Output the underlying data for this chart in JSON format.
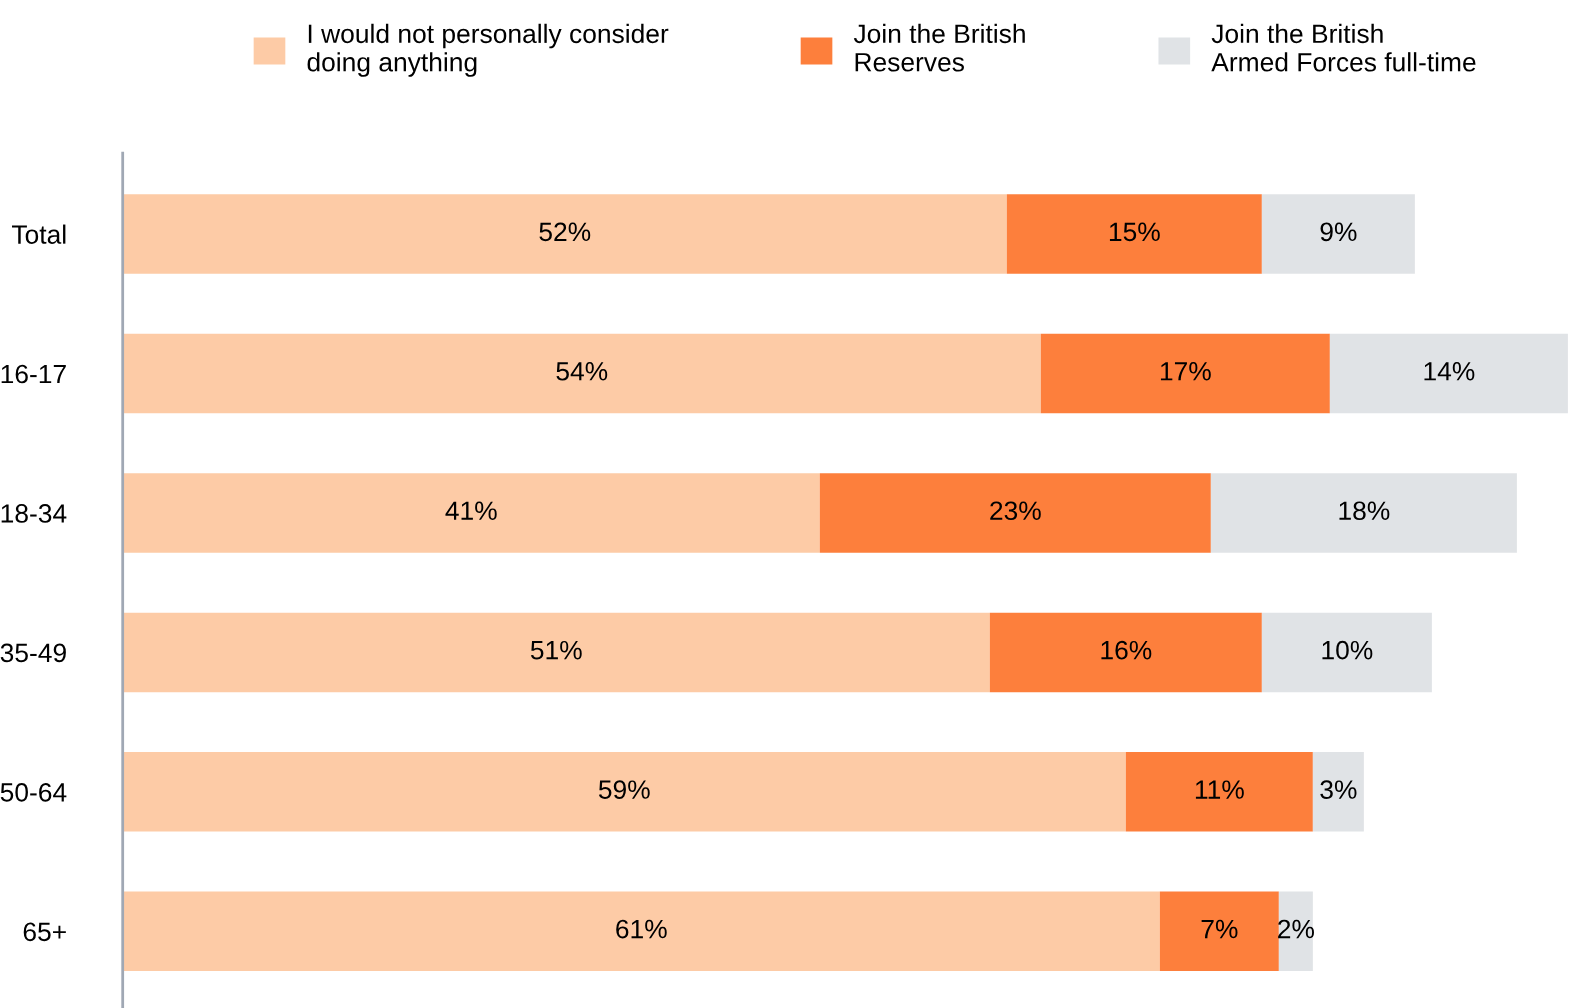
{
  "chart_data": {
    "type": "bar",
    "orientation": "horizontal",
    "stacked": true,
    "categories": [
      "Total",
      "16-17",
      "18-34",
      "35-49",
      "50-64",
      "65+"
    ],
    "series": [
      {
        "name": "I would not personally consider\ndoing anything",
        "color": "#fdcba6",
        "values": [
          52,
          54,
          41,
          51,
          59,
          61
        ],
        "value_labels": [
          "52%",
          "54%",
          "41%",
          "51%",
          "59%",
          "61%"
        ]
      },
      {
        "name": "Join the British\nReserves",
        "color": "#fd7f3c",
        "values": [
          15,
          17,
          23,
          16,
          11,
          7
        ],
        "value_labels": [
          "15%",
          "17%",
          "23%",
          "16%",
          "11%",
          "7%"
        ]
      },
      {
        "name": "Join the British\nArmed Forces full-time",
        "color": "#e0e3e6",
        "values": [
          9,
          14,
          18,
          10,
          3,
          2
        ],
        "value_labels": [
          "9%",
          "14%",
          "18%",
          "10%",
          "3%",
          "2%"
        ]
      }
    ],
    "xlim": [
      0,
      85.3
    ],
    "tick_labels": "y",
    "grid": false,
    "legend": "top"
  }
}
